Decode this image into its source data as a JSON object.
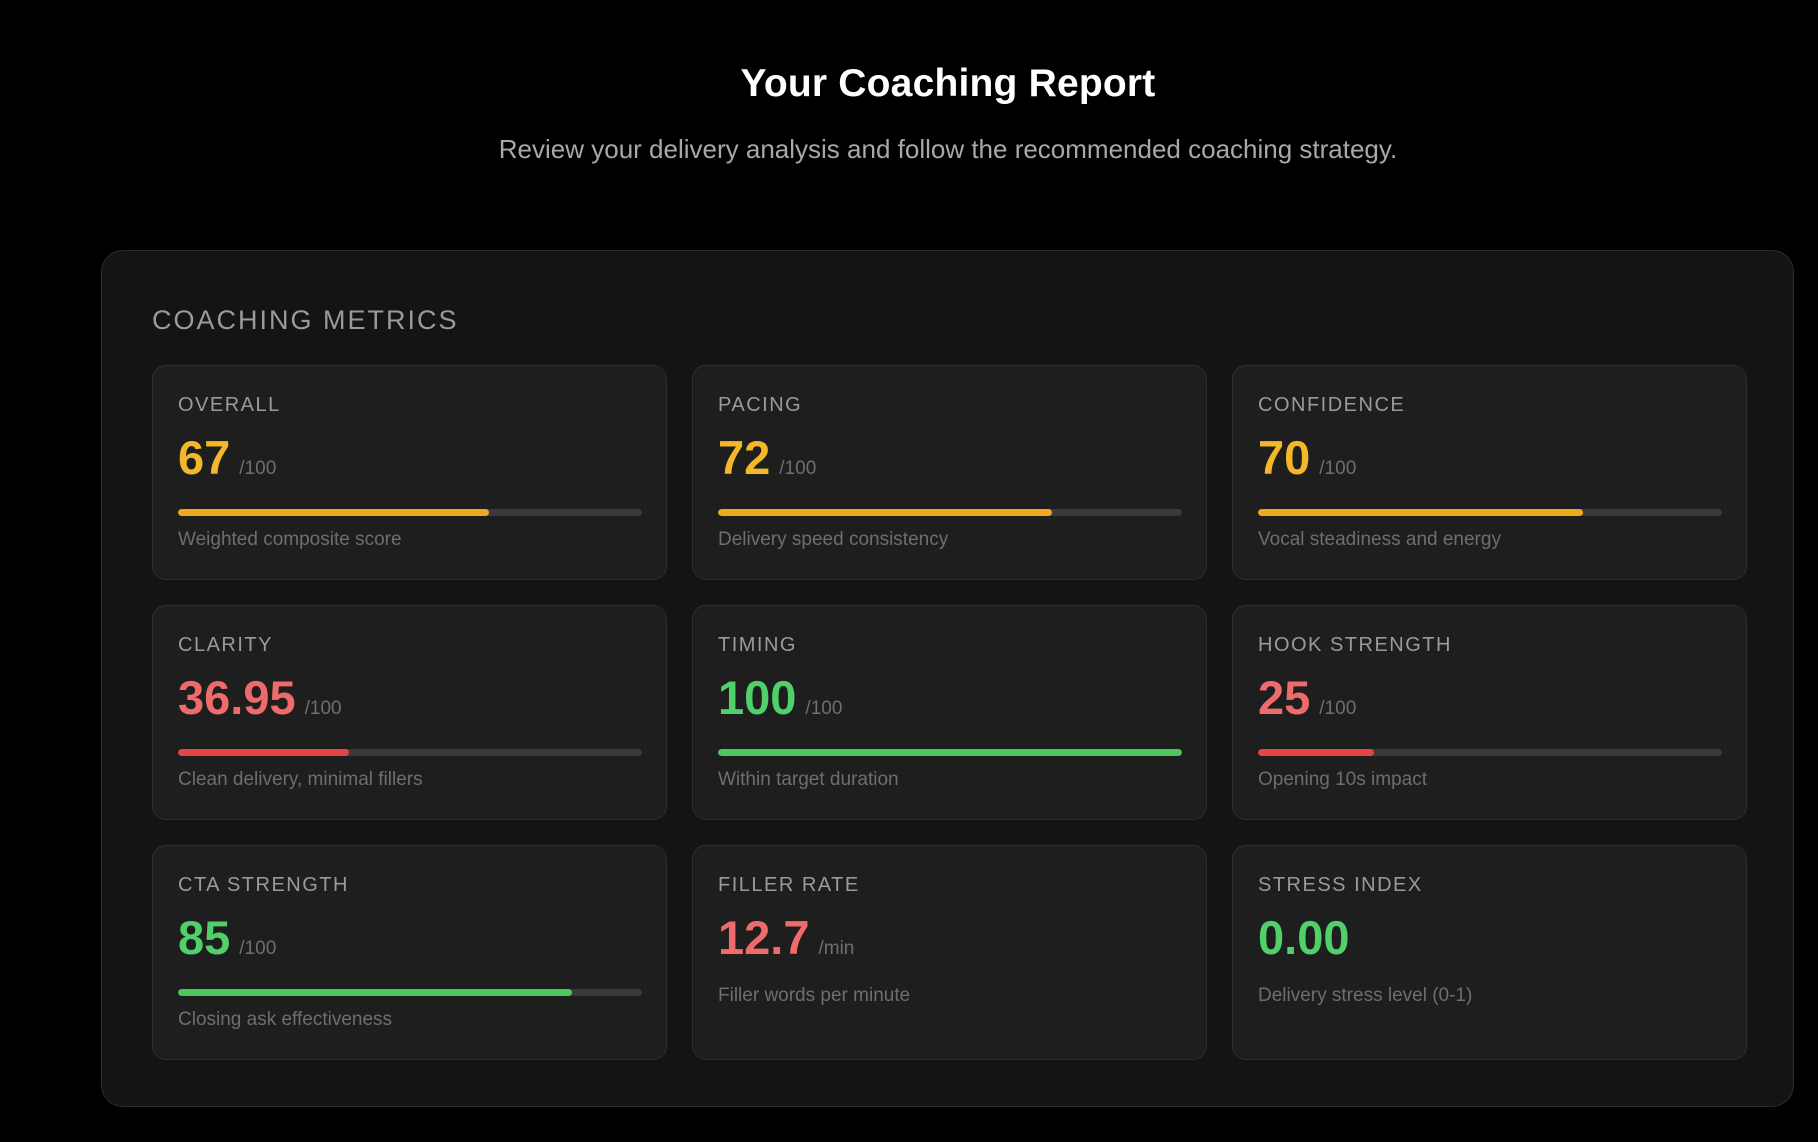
{
  "header": {
    "title": "Your Coaching Report",
    "subtitle": "Review your delivery analysis and follow the recommended coaching strategy."
  },
  "panel": {
    "title": "COACHING METRICS"
  },
  "colors": {
    "good": "#4fd06a",
    "warning": "#f4b728",
    "poor": "#ef6b6b",
    "track": "#3a3a3a"
  },
  "metrics": [
    {
      "label": "OVERALL",
      "value": "67",
      "unit": "/100",
      "progress": 0.67,
      "status": "warning",
      "description": "Weighted composite score"
    },
    {
      "label": "PACING",
      "value": "72",
      "unit": "/100",
      "progress": 0.72,
      "status": "warning",
      "description": "Delivery speed consistency"
    },
    {
      "label": "CONFIDENCE",
      "value": "70",
      "unit": "/100",
      "progress": 0.7,
      "status": "warning",
      "description": "Vocal steadiness and energy"
    },
    {
      "label": "CLARITY",
      "value": "36.95",
      "unit": "/100",
      "progress": 0.3695,
      "status": "poor",
      "description": "Clean delivery, minimal fillers"
    },
    {
      "label": "TIMING",
      "value": "100",
      "unit": "/100",
      "progress": 1.0,
      "status": "good",
      "description": "Within target duration"
    },
    {
      "label": "HOOK STRENGTH",
      "value": "25",
      "unit": "/100",
      "progress": 0.25,
      "status": "poor",
      "description": "Opening 10s impact"
    },
    {
      "label": "CTA STRENGTH",
      "value": "85",
      "unit": "/100",
      "progress": 0.85,
      "status": "good",
      "description": "Closing ask effectiveness"
    },
    {
      "label": "FILLER RATE",
      "value": "12.7",
      "unit": "/min",
      "progress": null,
      "status": "poor",
      "description": "Filler words per minute"
    },
    {
      "label": "STRESS INDEX",
      "value": "0.00",
      "unit": "",
      "progress": null,
      "status": "good",
      "description": "Delivery stress level (0-1)"
    }
  ]
}
